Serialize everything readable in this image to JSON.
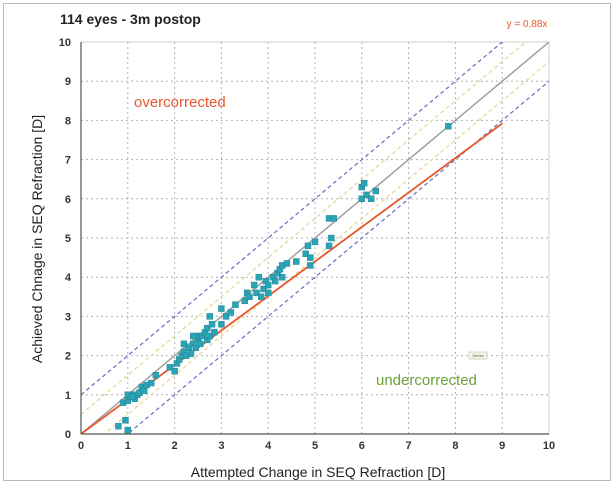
{
  "chart_data": {
    "type": "scatter",
    "title": "114 eyes - 3m postop",
    "xlabel": "Attempted Change in SEQ Refraction [D]",
    "ylabel": "Achieved Chnage in SEQ Refraction [D]",
    "xlim": [
      0,
      10
    ],
    "ylim": [
      0,
      10
    ],
    "x_ticks": [
      "0",
      "1",
      "2",
      "3",
      "4",
      "5",
      "6",
      "7",
      "8",
      "9",
      "10"
    ],
    "y_ticks": [
      "0",
      "1",
      "2",
      "3",
      "4",
      "5",
      "6",
      "7",
      "8",
      "9",
      "10"
    ],
    "grid": true,
    "annotations": {
      "overcorrected": "overcorrected",
      "undercorrected": "undercorrected",
      "fit_equation": "y = 0,88x",
      "small_label": "Series"
    },
    "fit_line": {
      "slope": 0.88,
      "x_range": [
        0,
        9
      ],
      "color": "#e8572a"
    },
    "identity_line": {
      "slope": 1,
      "color": "#a0a0a0"
    },
    "reference_offsets": [
      {
        "offset": 0.5,
        "color": "#e9d79a"
      },
      {
        "offset": -0.5,
        "color": "#e9d79a"
      },
      {
        "offset": 1.0,
        "color": "#6a78c6"
      },
      {
        "offset": -1.0,
        "color": "#6a78c6"
      }
    ],
    "point_color": "#2aa3b5",
    "points": [
      [
        0.8,
        0.2
      ],
      [
        0.95,
        0.35
      ],
      [
        1.0,
        0.1
      ],
      [
        0.9,
        0.8
      ],
      [
        1.0,
        0.85
      ],
      [
        1.05,
        0.95
      ],
      [
        1.1,
        1.0
      ],
      [
        1.15,
        0.9
      ],
      [
        1.2,
        1.0
      ],
      [
        1.0,
        1.0
      ],
      [
        1.1,
        0.95
      ],
      [
        1.25,
        1.05
      ],
      [
        1.3,
        1.2
      ],
      [
        1.35,
        1.1
      ],
      [
        1.4,
        1.25
      ],
      [
        1.5,
        1.3
      ],
      [
        1.6,
        1.5
      ],
      [
        1.9,
        1.7
      ],
      [
        2.0,
        1.6
      ],
      [
        2.05,
        1.8
      ],
      [
        2.1,
        1.9
      ],
      [
        2.15,
        2.0
      ],
      [
        2.2,
        2.1
      ],
      [
        2.25,
        2.0
      ],
      [
        2.3,
        2.2
      ],
      [
        2.35,
        2.05
      ],
      [
        2.4,
        2.3
      ],
      [
        2.45,
        2.2
      ],
      [
        2.5,
        2.4
      ],
      [
        2.5,
        2.5
      ],
      [
        2.55,
        2.3
      ],
      [
        2.6,
        2.5
      ],
      [
        2.65,
        2.6
      ],
      [
        2.7,
        2.4
      ],
      [
        2.7,
        2.7
      ],
      [
        2.75,
        2.5
      ],
      [
        2.8,
        2.8
      ],
      [
        2.75,
        3.0
      ],
      [
        2.85,
        2.6
      ],
      [
        2.2,
        2.3
      ],
      [
        2.4,
        2.5
      ],
      [
        3.0,
        2.8
      ],
      [
        3.0,
        3.2
      ],
      [
        3.1,
        3.0
      ],
      [
        3.2,
        3.1
      ],
      [
        3.3,
        3.3
      ],
      [
        3.5,
        3.4
      ],
      [
        3.55,
        3.6
      ],
      [
        3.6,
        3.5
      ],
      [
        3.7,
        3.8
      ],
      [
        3.75,
        3.6
      ],
      [
        3.8,
        4.0
      ],
      [
        3.85,
        3.5
      ],
      [
        3.9,
        3.7
      ],
      [
        3.95,
        3.9
      ],
      [
        4.0,
        3.8
      ],
      [
        4.0,
        3.6
      ],
      [
        4.1,
        4.0
      ],
      [
        4.15,
        3.9
      ],
      [
        4.2,
        4.1
      ],
      [
        4.25,
        4.2
      ],
      [
        4.3,
        4.3
      ],
      [
        4.4,
        4.35
      ],
      [
        4.3,
        4.0
      ],
      [
        4.6,
        4.4
      ],
      [
        4.8,
        4.6
      ],
      [
        4.85,
        4.8
      ],
      [
        4.9,
        4.5
      ],
      [
        4.9,
        4.3
      ],
      [
        5.0,
        4.9
      ],
      [
        5.3,
        4.8
      ],
      [
        5.35,
        5.0
      ],
      [
        5.3,
        5.5
      ],
      [
        5.4,
        5.5
      ],
      [
        6.0,
        6.3
      ],
      [
        6.05,
        6.4
      ],
      [
        6.0,
        6.0
      ],
      [
        6.1,
        6.1
      ],
      [
        6.2,
        6.0
      ],
      [
        6.3,
        6.2
      ],
      [
        7.85,
        7.85
      ]
    ]
  }
}
